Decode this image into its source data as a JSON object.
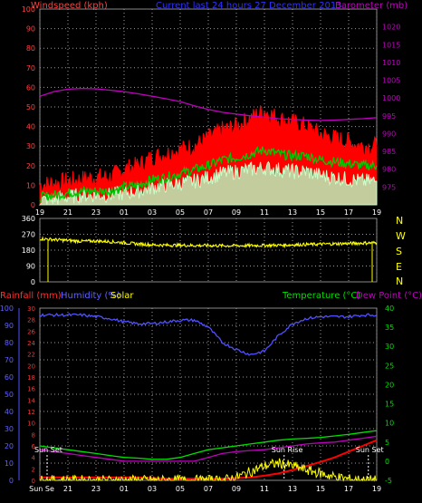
{
  "header": {
    "windspeed_label": "Windspeed (kph)",
    "current_label": "Current last 24 hours 27 December 2013",
    "barometer_label": "Barometer (mb)"
  },
  "colors": {
    "background": "#000000",
    "grid": "#9a9a9a",
    "wind_gust": "#ff0000",
    "wind_avg": "#00c800",
    "wind_speed": "#c8ffc8",
    "barometer": "#c000c0",
    "direction": "#ffff00",
    "rain": "#ff0000",
    "humidity": "#5050ff",
    "solar": "#ffff00",
    "temperature": "#00e000",
    "dewpoint": "#c000c0",
    "axis_left_text": "#ff4040",
    "axis_right_text": "#c000c0",
    "temp_axis_text": "#00e000",
    "compass_text": "#ffff00",
    "sun_text": "#ffffff"
  },
  "chart_data": [
    {
      "type": "line",
      "panel": "wind-barometer",
      "title": "Current last 24 hours 27 December 2013",
      "x": [
        "19",
        "20",
        "21",
        "22",
        "23",
        "00",
        "01",
        "02",
        "03",
        "04",
        "05",
        "06",
        "07",
        "08",
        "09",
        "10",
        "11",
        "12",
        "13",
        "14",
        "15",
        "16",
        "17",
        "18",
        "19"
      ],
      "x_tick_labels": [
        "19",
        "21",
        "23",
        "01",
        "03",
        "05",
        "07",
        "09",
        "11",
        "13",
        "15",
        "17",
        "19"
      ],
      "ylabel_left": "Windspeed (kph)",
      "ylim_left": [
        0,
        100
      ],
      "y_ticks_left": [
        0,
        10,
        20,
        30,
        40,
        50,
        60,
        70,
        80,
        90,
        100
      ],
      "ylabel_right": "Barometer (mb)",
      "ylim_right": [
        970,
        1025
      ],
      "y_ticks_right": [
        975,
        980,
        985,
        990,
        995,
        1000,
        1005,
        1010,
        1015,
        1020
      ],
      "grid": true,
      "series": [
        {
          "name": "gust",
          "axis": "left",
          "values": [
            10,
            11,
            12,
            13,
            14,
            14,
            18,
            20,
            24,
            26,
            28,
            30,
            34,
            38,
            40,
            44,
            48,
            44,
            42,
            40,
            36,
            34,
            32,
            30,
            30
          ]
        },
        {
          "name": "average",
          "axis": "left",
          "values": [
            4,
            5,
            6,
            7,
            7,
            7,
            9,
            10,
            13,
            14,
            16,
            18,
            20,
            23,
            24,
            26,
            28,
            26,
            25,
            25,
            23,
            22,
            21,
            20,
            20
          ]
        },
        {
          "name": "speed",
          "axis": "left",
          "values": [
            2,
            3,
            4,
            5,
            5,
            5,
            6,
            7,
            9,
            10,
            11,
            12,
            14,
            16,
            17,
            18,
            19,
            18,
            17,
            17,
            15,
            14,
            13,
            12,
            12
          ]
        },
        {
          "name": "Barometer",
          "axis": "right",
          "values": [
            1000.5,
            1001.8,
            1002.5,
            1002.7,
            1002.6,
            1002.2,
            1001.8,
            1001.2,
            1000.5,
            999.8,
            999,
            997.8,
            996.8,
            996,
            995.5,
            995,
            994.6,
            994.2,
            994,
            993.8,
            993.7,
            993.8,
            994,
            994.2,
            994.5
          ]
        }
      ]
    },
    {
      "type": "line",
      "panel": "wind-direction",
      "x": [
        "19",
        "20",
        "21",
        "22",
        "23",
        "00",
        "01",
        "02",
        "03",
        "04",
        "05",
        "06",
        "07",
        "08",
        "09",
        "10",
        "11",
        "12",
        "13",
        "14",
        "15",
        "16",
        "17",
        "18",
        "19"
      ],
      "ylim": [
        0,
        360
      ],
      "y_ticks": [
        0,
        90,
        180,
        270,
        360
      ],
      "compass_labels": [
        "N",
        "W",
        "S",
        "E",
        "N"
      ],
      "grid": true,
      "series": [
        {
          "name": "direction",
          "values": [
            245,
            240,
            235,
            230,
            232,
            228,
            222,
            215,
            210,
            208,
            208,
            206,
            206,
            205,
            205,
            206,
            207,
            208,
            210,
            212,
            214,
            216,
            218,
            220,
            222
          ]
        }
      ]
    },
    {
      "type": "line",
      "panel": "rain-humidity-temperature",
      "x": [
        "19",
        "20",
        "21",
        "22",
        "23",
        "00",
        "01",
        "02",
        "03",
        "04",
        "05",
        "06",
        "07",
        "08",
        "09",
        "10",
        "11",
        "12",
        "13",
        "14",
        "15",
        "16",
        "17",
        "18",
        "19"
      ],
      "x_tick_labels": [
        "Sun Set",
        "21",
        "23",
        "01",
        "03",
        "05",
        "07",
        "09",
        "11",
        "13",
        "15",
        "17",
        "19"
      ],
      "labels": {
        "rainfall": "Rainfall (mm)",
        "humidity": "Humidity (%)",
        "solar": "Solar",
        "temperature": "Temperature (°C)",
        "dewpoint": "Dew Point (°C)"
      },
      "ylim_humidity": [
        0,
        100
      ],
      "y_ticks_humidity": [
        0,
        10,
        20,
        30,
        40,
        50,
        60,
        70,
        80,
        90,
        100
      ],
      "ylim_rain": [
        0,
        30
      ],
      "y_ticks_rain": [
        0,
        2,
        4,
        6,
        8,
        10,
        12,
        14,
        16,
        18,
        20,
        22,
        24,
        26,
        28,
        30
      ],
      "ylim_temperature": [
        -5,
        40
      ],
      "y_ticks_temperature": [
        -5,
        0,
        5,
        10,
        15,
        20,
        25,
        30,
        35,
        40
      ],
      "annotations": [
        "Sun Set",
        "Sun Rise",
        "Sun Set"
      ],
      "grid": true,
      "series": [
        {
          "name": "Humidity",
          "axis": "humidity",
          "values": [
            96,
            96,
            96,
            96,
            95,
            94,
            92,
            91,
            91,
            92,
            93,
            93,
            89,
            80,
            76,
            73,
            75,
            84,
            91,
            94,
            95,
            95,
            95,
            96,
            96
          ]
        },
        {
          "name": "Temperature",
          "axis": "temperature",
          "values": [
            4,
            3.5,
            3,
            2.5,
            2,
            1.5,
            1,
            0.8,
            0.5,
            0.5,
            1,
            2,
            3,
            3.5,
            4,
            4.5,
            5,
            5.5,
            5.8,
            6,
            6.2,
            6.6,
            7,
            7.5,
            8
          ]
        },
        {
          "name": "Dew Point",
          "axis": "temperature",
          "values": [
            3,
            2.5,
            2,
            1.5,
            1,
            0.5,
            0,
            -0.5,
            -0.8,
            -1,
            -0.8,
            0,
            1,
            2,
            2.5,
            2.8,
            3,
            3.5,
            4,
            4.5,
            4.8,
            5,
            5.5,
            6,
            6.5
          ]
        },
        {
          "name": "Rainfall",
          "axis": "rain",
          "values": [
            0.5,
            0.5,
            0.5,
            0.5,
            0.5,
            0.5,
            0.5,
            0.5,
            0.4,
            0.3,
            0.3,
            0.3,
            0.3,
            0.3,
            0.4,
            0.5,
            0.8,
            1.2,
            1.8,
            2.5,
            3.2,
            4,
            5,
            6,
            7
          ]
        },
        {
          "name": "Solar",
          "axis": "rain",
          "values": [
            0,
            0,
            0,
            0,
            0,
            0,
            0,
            0,
            0,
            0,
            0,
            0,
            0,
            0,
            0.5,
            1.5,
            2.5,
            3,
            2.5,
            1.8,
            1.2,
            0.6,
            0.2,
            0,
            0
          ]
        }
      ]
    }
  ]
}
